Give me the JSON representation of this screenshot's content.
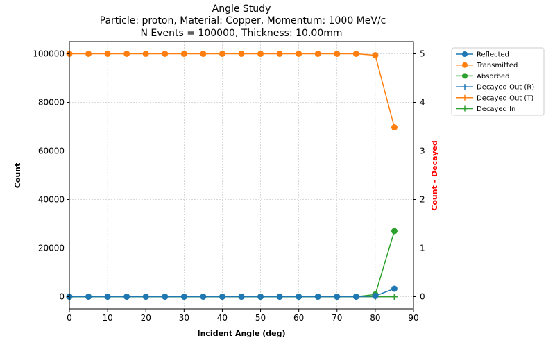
{
  "chart_data": {
    "type": "line",
    "title_lines": [
      "Angle Study",
      "Particle: proton, Material: Copper, Momentum: 1000 MeV/c",
      "N Events = 100000, Thickness: 10.00mm"
    ],
    "xlabel": "Incident Angle (deg)",
    "ylabel": "Count",
    "y2label": "Count - Decayed",
    "xlim": [
      0,
      90
    ],
    "ylim": [
      -5000,
      105000
    ],
    "y2lim": [
      -0.25,
      5.25
    ],
    "x_ticks": [
      0,
      10,
      20,
      30,
      40,
      50,
      60,
      70,
      80,
      90
    ],
    "y_ticks": [
      0,
      20000,
      40000,
      60000,
      80000,
      100000
    ],
    "y2_ticks": [
      0,
      1,
      2,
      3,
      4,
      5
    ],
    "grid": true,
    "legend_position": "outside-top-right",
    "x": [
      0,
      5,
      10,
      15,
      20,
      25,
      30,
      35,
      40,
      45,
      50,
      55,
      60,
      65,
      70,
      75,
      80,
      85
    ],
    "series": [
      {
        "name": "Reflected",
        "axis": "left",
        "marker": "circle",
        "color": "#1f77b4",
        "values": [
          0,
          0,
          0,
          0,
          0,
          0,
          0,
          0,
          0,
          0,
          0,
          0,
          0,
          0,
          0,
          0,
          300,
          3300
        ]
      },
      {
        "name": "Transmitted",
        "axis": "left",
        "marker": "circle",
        "color": "#ff7f0e",
        "values": [
          100000,
          100000,
          100000,
          100000,
          100000,
          100000,
          100000,
          100000,
          100000,
          100000,
          100000,
          100000,
          100000,
          100000,
          100000,
          100000,
          99400,
          69700
        ]
      },
      {
        "name": "Absorbed",
        "axis": "left",
        "marker": "circle",
        "color": "#2ca02c",
        "values": [
          0,
          0,
          0,
          0,
          0,
          0,
          0,
          0,
          0,
          0,
          0,
          0,
          0,
          0,
          0,
          0,
          900,
          27000
        ]
      },
      {
        "name": "Decayed Out (R)",
        "axis": "right",
        "marker": "plus",
        "color": "#1f77b4",
        "values": [
          0,
          0,
          0,
          0,
          0,
          0,
          0,
          0,
          0,
          0,
          0,
          0,
          0,
          0,
          0,
          0,
          0,
          0
        ]
      },
      {
        "name": "Decayed Out (T)",
        "axis": "right",
        "marker": "plus",
        "color": "#ff7f0e",
        "values": [
          0,
          0,
          0,
          0,
          0,
          0,
          0,
          0,
          0,
          0,
          0,
          0,
          0,
          0,
          0,
          0,
          0,
          0
        ]
      },
      {
        "name": "Decayed In",
        "axis": "right",
        "marker": "plus",
        "color": "#2ca02c",
        "values": [
          0,
          0,
          0,
          0,
          0,
          0,
          0,
          0,
          0,
          0,
          0,
          0,
          0,
          0,
          0,
          0,
          0,
          0
        ]
      }
    ]
  },
  "colors": {
    "y2label": "#ff0000",
    "grid": "#b0b0b0"
  }
}
